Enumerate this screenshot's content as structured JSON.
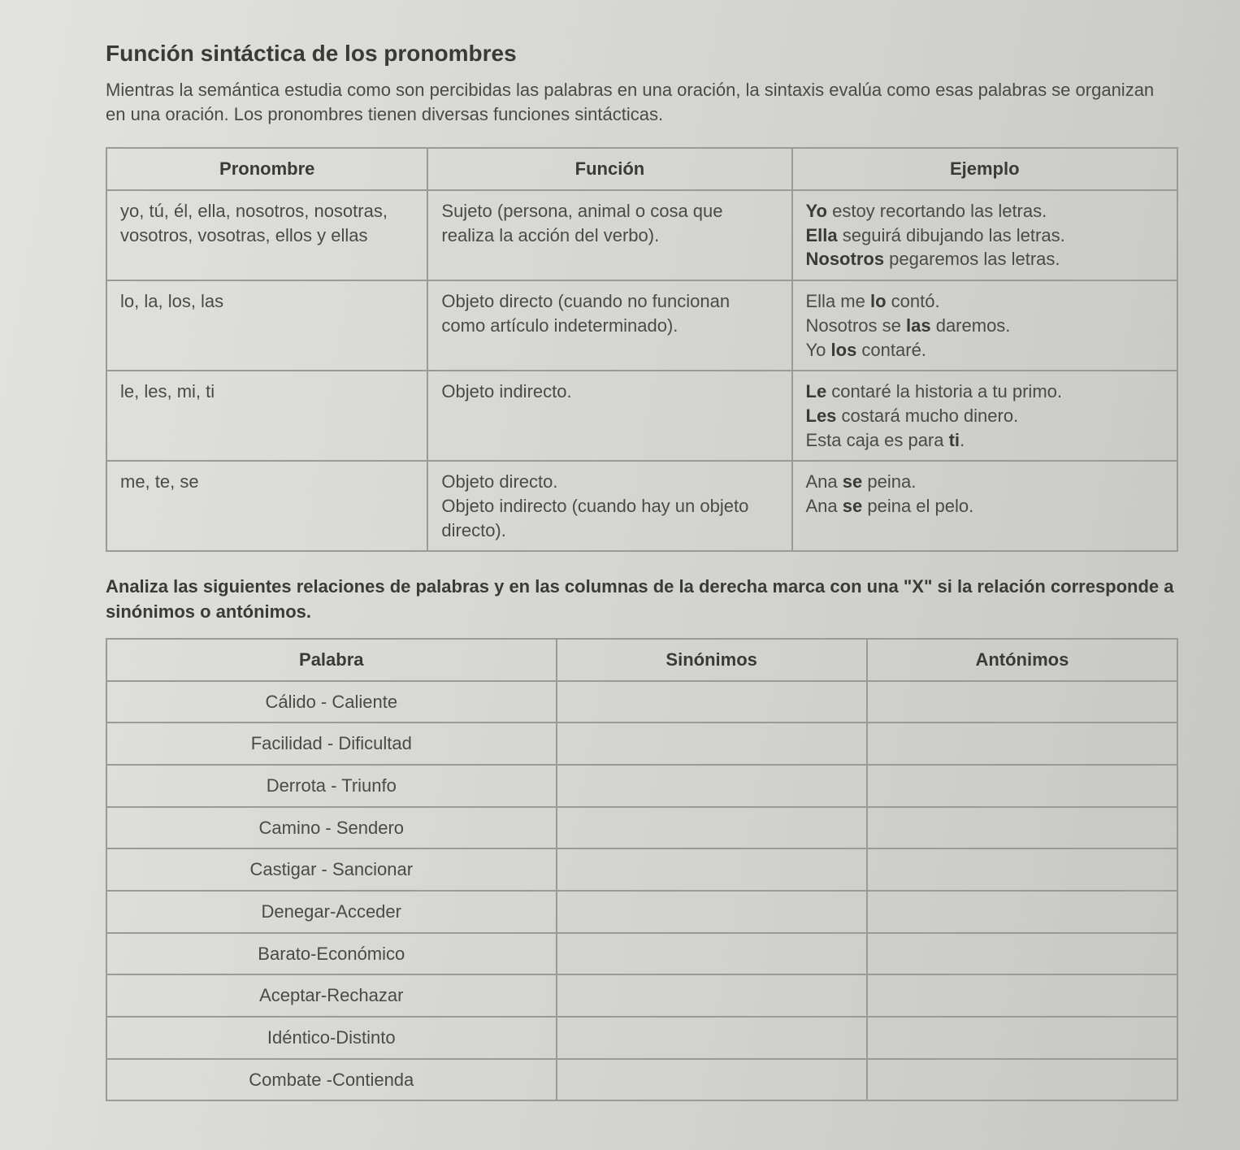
{
  "title": "Función sintáctica de los pronombres",
  "intro": "Mientras la semántica estudia como son percibidas las palabras en una oración, la sintaxis evalúa como esas palabras se organizan en una oración. Los pronombres tienen diversas funciones sintácticas.",
  "pron_table": {
    "headers": {
      "c1": "Pronombre",
      "c2": "Función",
      "c3": "Ejemplo"
    },
    "rows": [
      {
        "pronoun": "yo, tú, él, ella, nosotros, nosotras, vosotros, vosotras, ellos y ellas",
        "function": "Sujeto (persona, animal o cosa que realiza la acción del verbo).",
        "example_html": "<b>Yo</b> estoy recortando las letras.<br><b>Ella</b> seguirá dibujando las letras.<br><b>Nosotros</b> pegaremos las letras."
      },
      {
        "pronoun": "lo, la, los, las",
        "function": "Objeto directo (cuando no funcionan como artículo indeterminado).",
        "example_html": "Ella me <b>lo</b> contó.<br>Nosotros se <b>las</b> daremos.<br>Yo <b>los</b> contaré."
      },
      {
        "pronoun": "le, les, mi, ti",
        "function": "Objeto indirecto.",
        "example_html": "<b>Le</b> contaré la historia a tu primo.<br><b>Les</b> costará mucho dinero.<br>Esta caja es para <b>ti</b>."
      },
      {
        "pronoun": "me, te, se",
        "function": "Objeto directo.\nObjeto indirecto (cuando hay un objeto directo).",
        "example_html": "Ana <b>se</b> peina.<br>Ana <b>se</b> peina el pelo."
      }
    ]
  },
  "instruction": {
    "lead": "Analiza las siguientes relaciones de palabras y en las columnas de la derecha marca con una \"X\" si la relación corresponde a sinónimos o antónimos."
  },
  "syn_table": {
    "headers": {
      "c1": "Palabra",
      "c2": "Sinónimos",
      "c3": "Antónimos"
    },
    "words": [
      "Cálido - Caliente",
      "Facilidad - Dificultad",
      "Derrota - Triunfo",
      "Camino - Sendero",
      "Castigar - Sancionar",
      "Denegar-Acceder",
      "Barato-Económico",
      "Aceptar-Rechazar",
      "Idéntico-Distinto",
      "Combate -Contienda"
    ]
  },
  "colors": {
    "border": "#9a9a96",
    "text": "#4a4a48",
    "strong": "#3a3a38",
    "bg": "#d8d8d4"
  },
  "fonts": {
    "family": "Arial, Helvetica, sans-serif",
    "title_size_pt": 21,
    "body_size_pt": 16
  }
}
